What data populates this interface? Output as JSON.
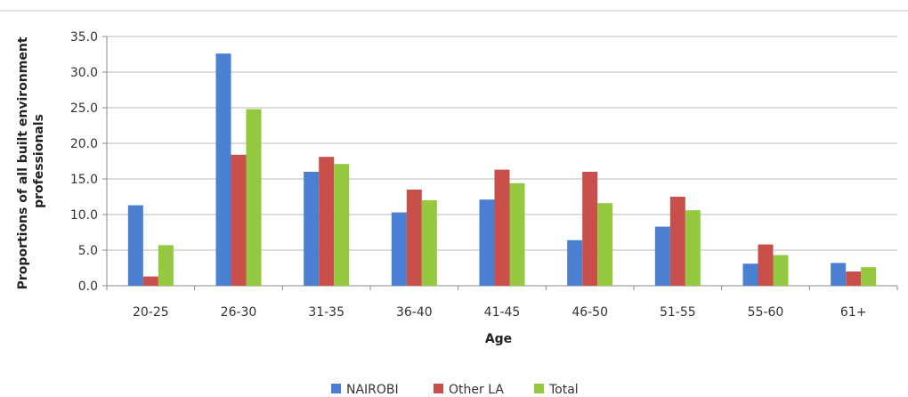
{
  "chart_data": {
    "type": "bar",
    "title": "",
    "xlabel": "Age",
    "ylabel_lines": [
      "Proportions of all built environment",
      "professionals"
    ],
    "categories": [
      "20-25",
      "26-30",
      "31-35",
      "36-40",
      "41-45",
      "46-50",
      "51-55",
      "55-60",
      "61+"
    ],
    "series": [
      {
        "name": "NAIROBI",
        "color": "#4a7fd1",
        "values": [
          11.3,
          32.6,
          16.0,
          10.3,
          12.1,
          6.4,
          8.3,
          3.1,
          3.2
        ]
      },
      {
        "name": "Other LA",
        "color": "#c9504a",
        "values": [
          1.3,
          18.4,
          18.1,
          13.5,
          16.3,
          16.0,
          12.5,
          5.8,
          2.0
        ]
      },
      {
        "name": "Total",
        "color": "#93c83f",
        "values": [
          5.7,
          24.8,
          17.1,
          12.0,
          14.4,
          11.6,
          10.6,
          4.3,
          2.6
        ]
      }
    ],
    "ylim": [
      0,
      35
    ],
    "yticks": [
      "0.0",
      "5.0",
      "10.0",
      "15.0",
      "20.0",
      "25.0",
      "30.0",
      "35.0"
    ],
    "grid": true,
    "legend_position": "bottom"
  }
}
